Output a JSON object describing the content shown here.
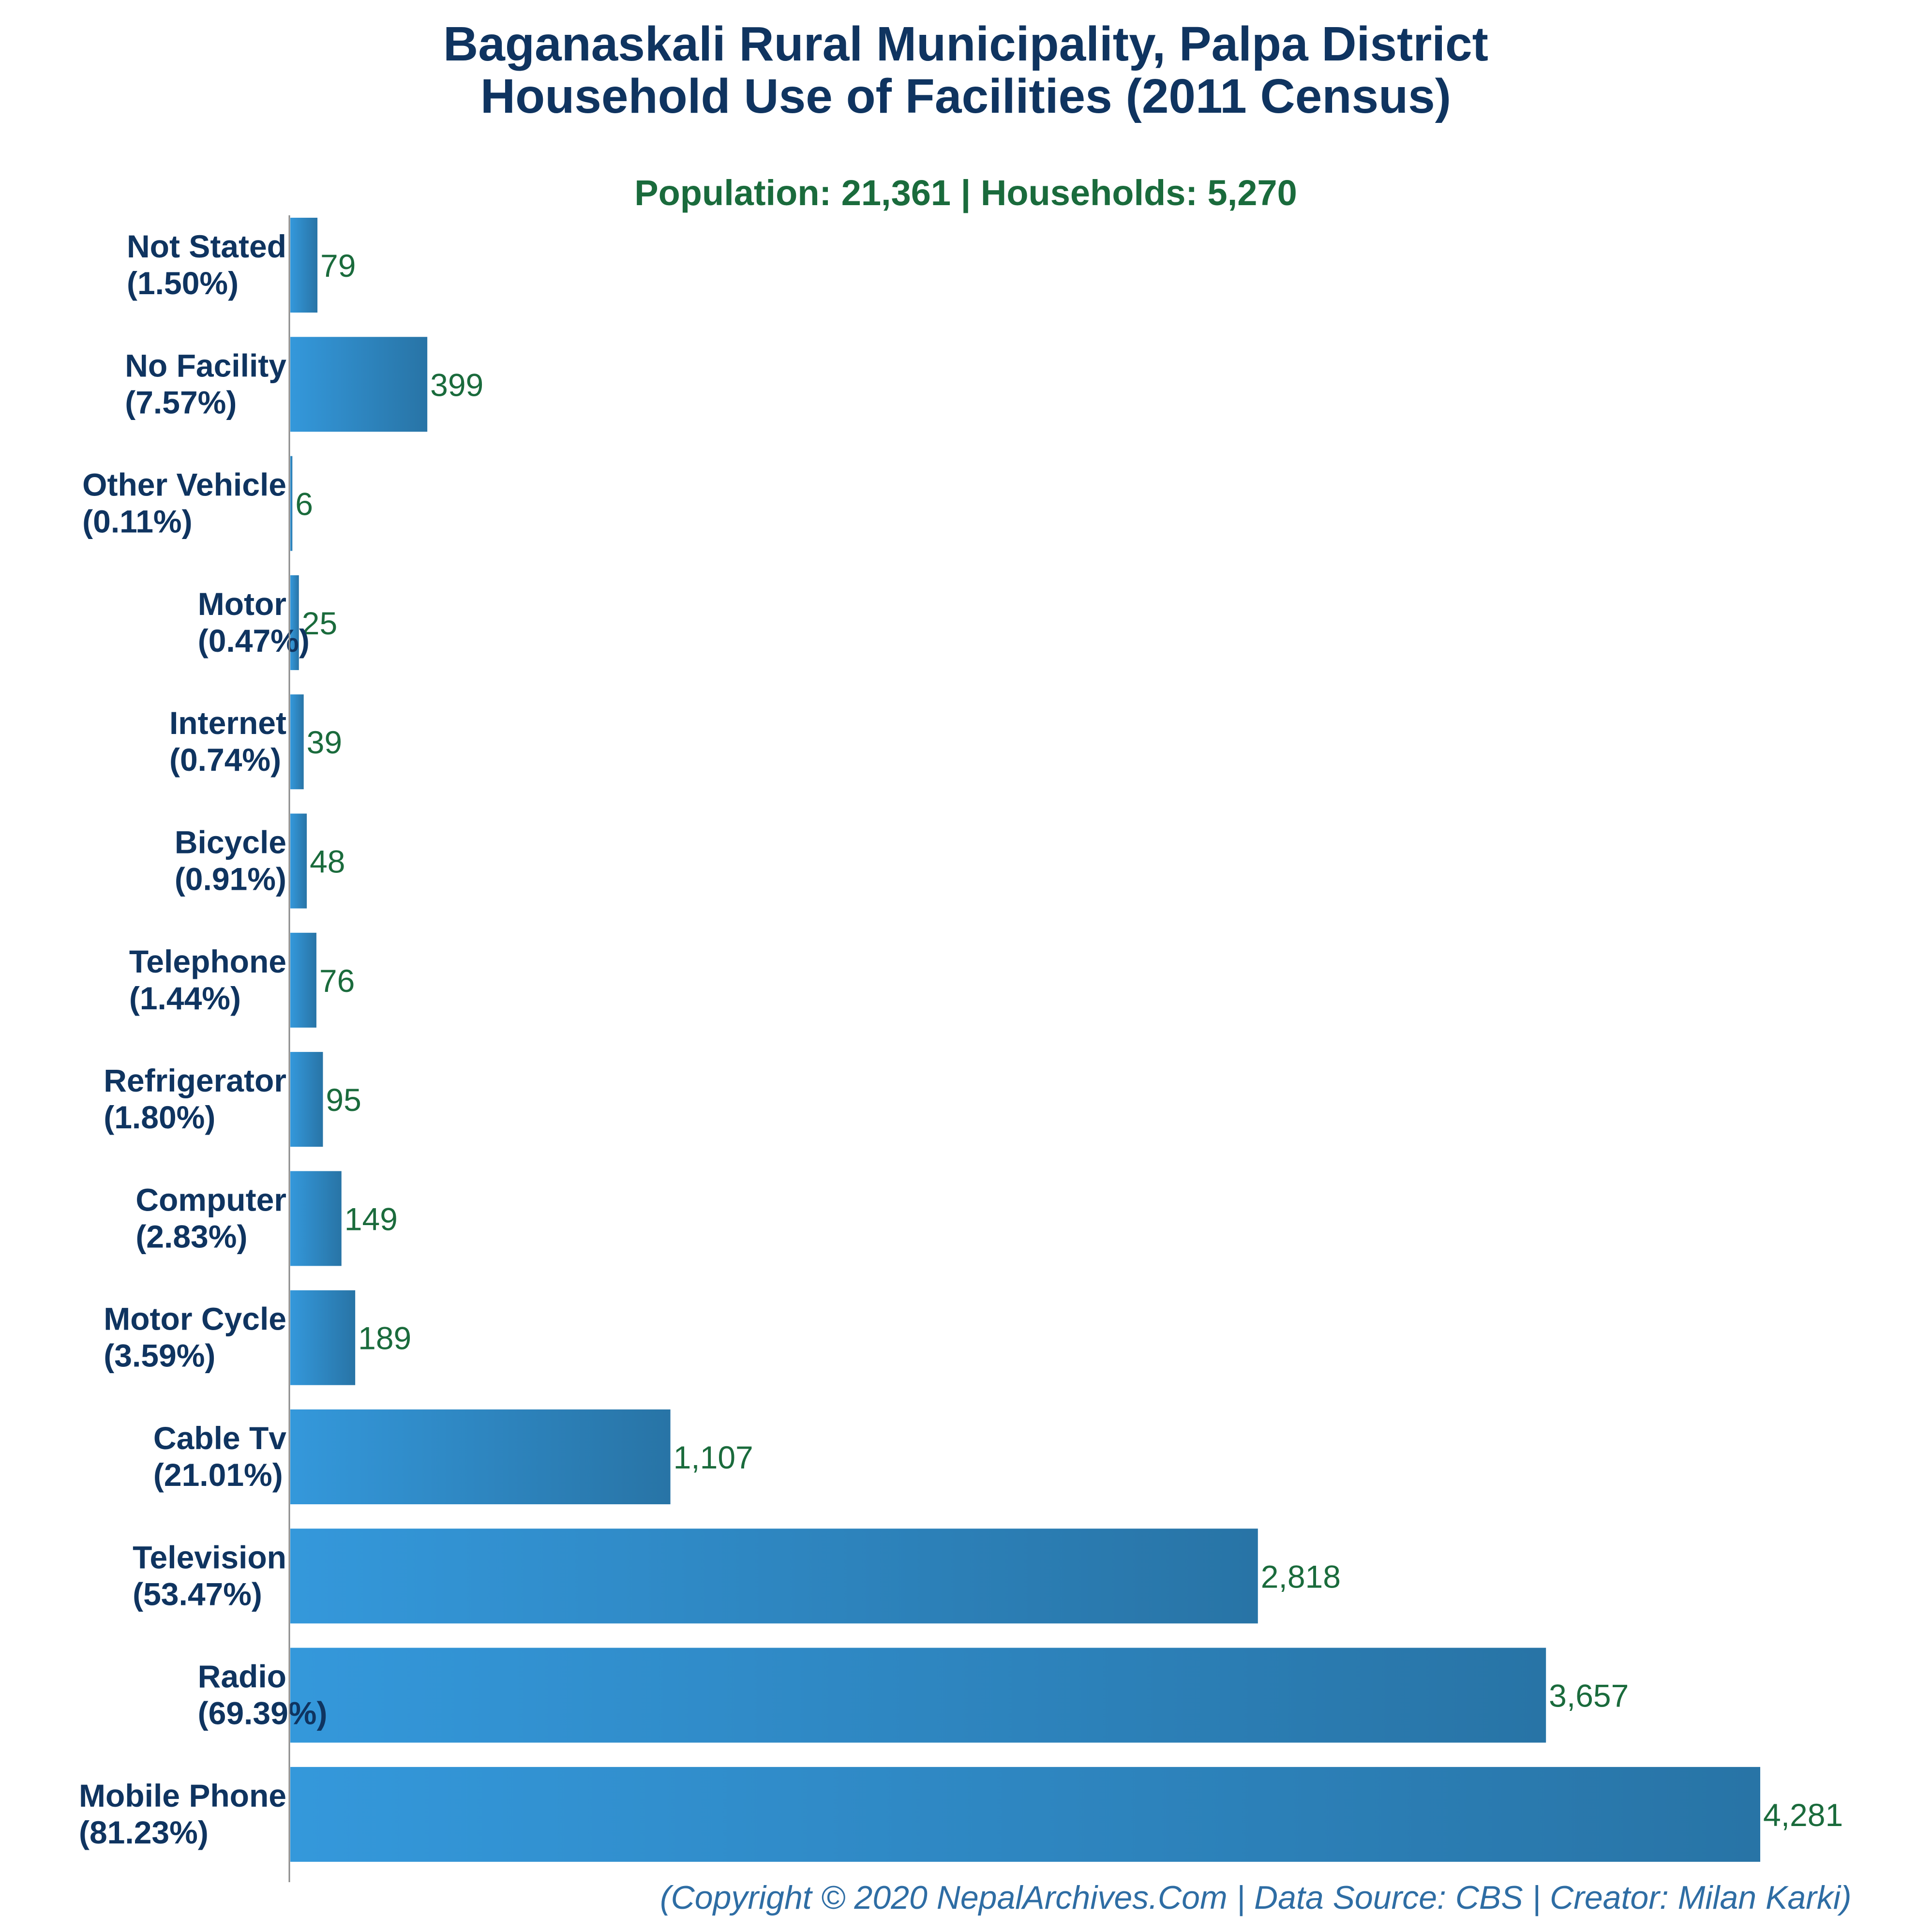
{
  "chart_data": {
    "type": "bar",
    "orientation": "horizontal",
    "title_line1": "Baganaskali Rural Municipality, Palpa District",
    "title_line2": "Household Use of Facilities (2011 Census)",
    "subtitle": "Population: 21,361 | Households: 5,270",
    "categories": [
      "Not Stated",
      "No Facility",
      "Other Vehicle",
      "Motor",
      "Internet",
      "Bicycle",
      "Telephone",
      "Refrigerator",
      "Computer",
      "Motor Cycle",
      "Cable Tv",
      "Television",
      "Radio",
      "Mobile Phone"
    ],
    "percent_labels": [
      "(1.50%)",
      "(7.57%)",
      "(0.11%)",
      "(0.47%)",
      "(0.74%)",
      "(0.91%)",
      "(1.44%)",
      "(1.80%)",
      "(2.83%)",
      "(3.59%)",
      "(21.01%)",
      "(53.47%)",
      "(69.39%)",
      "(81.23%)"
    ],
    "values": [
      79,
      399,
      6,
      25,
      39,
      48,
      76,
      95,
      149,
      189,
      1107,
      2818,
      3657,
      4281
    ],
    "value_labels": [
      "79",
      "399",
      "6",
      "25",
      "39",
      "48",
      "76",
      "95",
      "149",
      "189",
      "1,107",
      "2,818",
      "3,657",
      "4,281"
    ],
    "xlim": [
      0,
      4281
    ],
    "xlabel": "",
    "ylabel": "",
    "grid": false,
    "legend": "none",
    "footer": "(Copyright © 2020 NepalArchives.Com | Data Source: CBS | Creator: Milan Karki)",
    "colors": {
      "bar_light": "#3498db",
      "bar_dark": "#2874a6",
      "title": "#0f3460",
      "subtitle": "#1a6b3c",
      "value_text": "#1a6b3c",
      "footer": "#2e6da4",
      "axis": "#888888"
    }
  }
}
